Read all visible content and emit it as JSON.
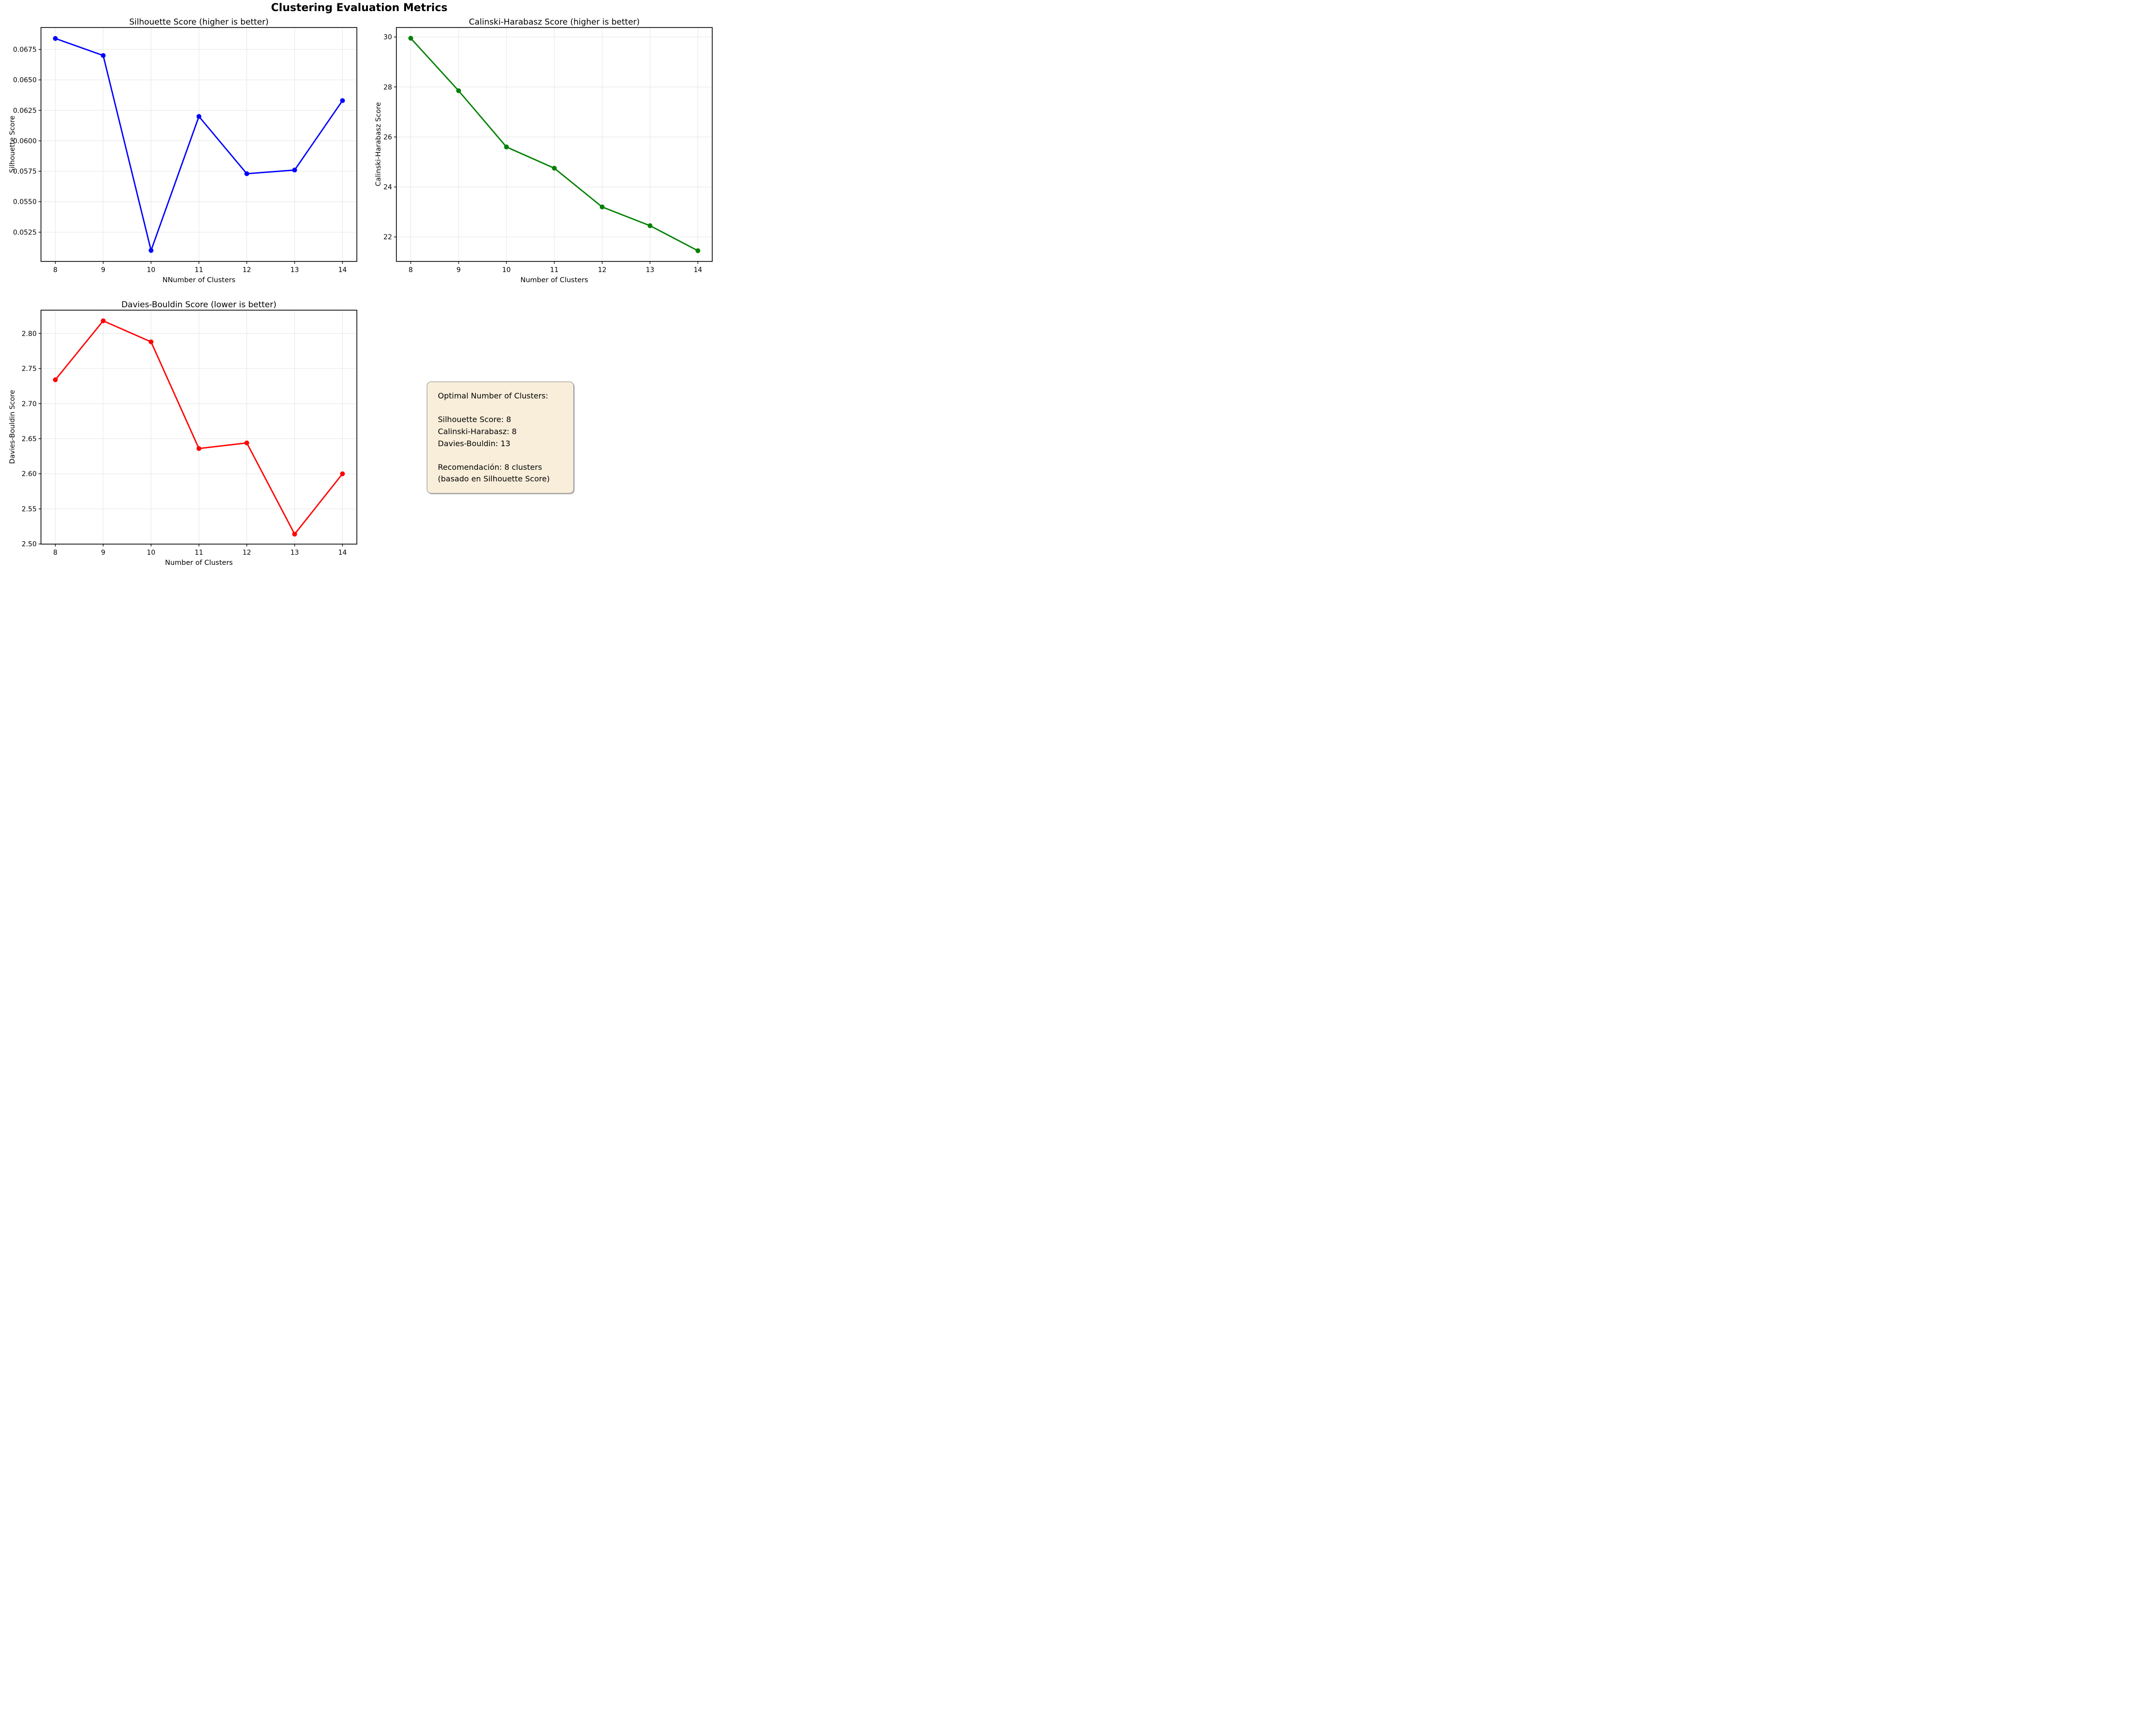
{
  "figure": {
    "suptitle": "Clustering Evaluation Metrics",
    "background": "#ffffff",
    "grid_color": "#e7e7e7",
    "spine_color": "#000000"
  },
  "chart_data": [
    {
      "id": "silhouette",
      "type": "line",
      "title": "Silhouette Score (higher is better)",
      "xlabel": "NNumber of Clusters",
      "ylabel": "Silhouette Score",
      "line_color": "#0000ff",
      "marker": "circle",
      "grid": true,
      "legend_position": "none",
      "x": [
        8,
        9,
        10,
        11,
        12,
        13,
        14
      ],
      "values": [
        0.0684,
        0.067,
        0.051,
        0.062,
        0.0573,
        0.0576,
        0.0633
      ],
      "xlim": [
        7.7,
        14.3
      ],
      "ylim": [
        0.0501,
        0.0693
      ],
      "xticks": [
        8,
        9,
        10,
        11,
        12,
        13,
        14
      ],
      "xtick_labels": [
        "8",
        "9",
        "10",
        "11",
        "12",
        "13",
        "14"
      ],
      "yticks": [
        0.0525,
        0.055,
        0.0575,
        0.06,
        0.0625,
        0.065,
        0.0675
      ],
      "ytick_labels": [
        "0.0525",
        "0.0550",
        "0.0575",
        "0.0600",
        "0.0625",
        "0.0650",
        "0.0675"
      ]
    },
    {
      "id": "calinski",
      "type": "line",
      "title": "Calinski-Harabasz Score (higher is better)",
      "xlabel": "Number of Clusters",
      "ylabel": "Calinski-Harabasz Score",
      "line_color": "#008000",
      "marker": "circle",
      "grid": true,
      "legend_position": "none",
      "x": [
        8,
        9,
        10,
        11,
        12,
        13,
        14
      ],
      "values": [
        29.95,
        27.85,
        25.6,
        24.75,
        23.2,
        22.45,
        21.45
      ],
      "xlim": [
        7.7,
        14.3
      ],
      "ylim": [
        21.02,
        30.38
      ],
      "xticks": [
        8,
        9,
        10,
        11,
        12,
        13,
        14
      ],
      "xtick_labels": [
        "8",
        "9",
        "10",
        "11",
        "12",
        "13",
        "14"
      ],
      "yticks": [
        22,
        24,
        26,
        28,
        30
      ],
      "ytick_labels": [
        "22",
        "24",
        "26",
        "28",
        "30"
      ]
    },
    {
      "id": "davies",
      "type": "line",
      "title": "Davies-Bouldin Score (lower is better)",
      "xlabel": "Number of Clusters",
      "ylabel": "Davies-Bouldin Score",
      "line_color": "#ff0000",
      "marker": "circle",
      "grid": true,
      "legend_position": "none",
      "x": [
        8,
        9,
        10,
        11,
        12,
        13,
        14
      ],
      "values": [
        2.734,
        2.818,
        2.788,
        2.636,
        2.644,
        2.514,
        2.6
      ],
      "xlim": [
        7.7,
        14.3
      ],
      "ylim": [
        2.4998,
        2.8332
      ],
      "xticks": [
        8,
        9,
        10,
        11,
        12,
        13,
        14
      ],
      "xtick_labels": [
        "8",
        "9",
        "10",
        "11",
        "12",
        "13",
        "14"
      ],
      "yticks": [
        2.5,
        2.55,
        2.6,
        2.65,
        2.7,
        2.75,
        2.8
      ],
      "ytick_labels": [
        "2.50",
        "2.55",
        "2.60",
        "2.65",
        "2.70",
        "2.75",
        "2.80"
      ]
    }
  ],
  "info_box": {
    "text": "Optimal Number of Clusters:\n\nSilhouette Score: 8\nCalinski-Harabasz: 8\nDavies-Bouldin: 13\n\nRecomendación: 8 clusters\n(basado en Silhouette Score)",
    "background": "#f9eeda",
    "border_color": "#888888"
  }
}
